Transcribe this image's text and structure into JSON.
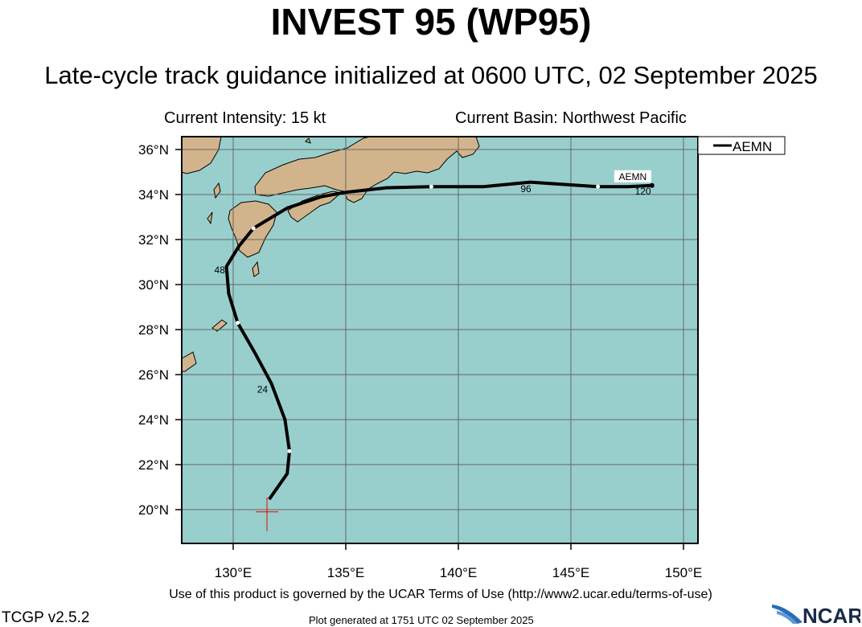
{
  "header": {
    "title": "INVEST 95 (WP95)",
    "subtitle": "Late-cycle track guidance initialized at 0600 UTC, 02 September 2025",
    "intensity": "Current Intensity: 15 kt",
    "basin": "Current Basin: Northwest Pacific"
  },
  "footer": {
    "terms": "Use of this product is governed by the UCAR Terms of Use (http://www2.ucar.edu/terms-of-use)",
    "version": "TCGP v2.5.2",
    "generated": "Plot generated at 1751 UTC   02 September 2025",
    "logo": "NCAR"
  },
  "chart_data": {
    "type": "line",
    "title": "INVEST 95 (WP95)",
    "xlim": [
      127.7,
      150.6
    ],
    "ylim": [
      18.5,
      36.5
    ],
    "x_ticks": [
      130,
      135,
      140,
      145,
      150
    ],
    "x_tick_labels": [
      "130°E",
      "135°E",
      "140°E",
      "145°E",
      "150°E"
    ],
    "y_ticks": [
      20,
      22,
      24,
      26,
      28,
      30,
      32,
      34,
      36
    ],
    "y_tick_labels": [
      "20°N",
      "22°N",
      "24°N",
      "26°N",
      "28°N",
      "30°N",
      "32°N",
      "34°N",
      "36°N"
    ],
    "grid": true,
    "legend": {
      "position": "top-right",
      "entries": [
        "AEMN"
      ]
    },
    "current_position": {
      "lon": 131.5,
      "lat": 19.9
    },
    "series": [
      {
        "name": "AEMN",
        "color": "#000000",
        "lon": [
          131.6,
          132.4,
          132.5,
          132.3,
          131.7,
          131.0,
          130.2,
          129.8,
          129.7,
          130.25,
          130.9,
          132.4,
          133.9,
          135.0,
          136.8,
          138.8,
          141.1,
          143.2,
          146.2,
          147.5,
          148.6
        ],
        "lat": [
          20.46,
          21.6,
          22.6,
          24.0,
          25.6,
          26.9,
          28.3,
          29.6,
          30.8,
          31.7,
          32.5,
          33.4,
          33.9,
          34.1,
          34.3,
          34.35,
          34.35,
          34.55,
          34.35,
          34.35,
          34.4
        ],
        "white_markers": [
          2,
          6,
          10,
          15,
          18
        ],
        "hour_labels": [
          {
            "label": "24",
            "lon": 131.3,
            "lat": 25.2
          },
          {
            "label": "48",
            "lon": 129.4,
            "lat": 30.5
          },
          {
            "label": "96",
            "lon": 143.0,
            "lat": 34.1
          },
          {
            "label": "120",
            "lon": 148.2,
            "lat": 34.0
          }
        ],
        "end_label": "AEMN"
      }
    ]
  }
}
